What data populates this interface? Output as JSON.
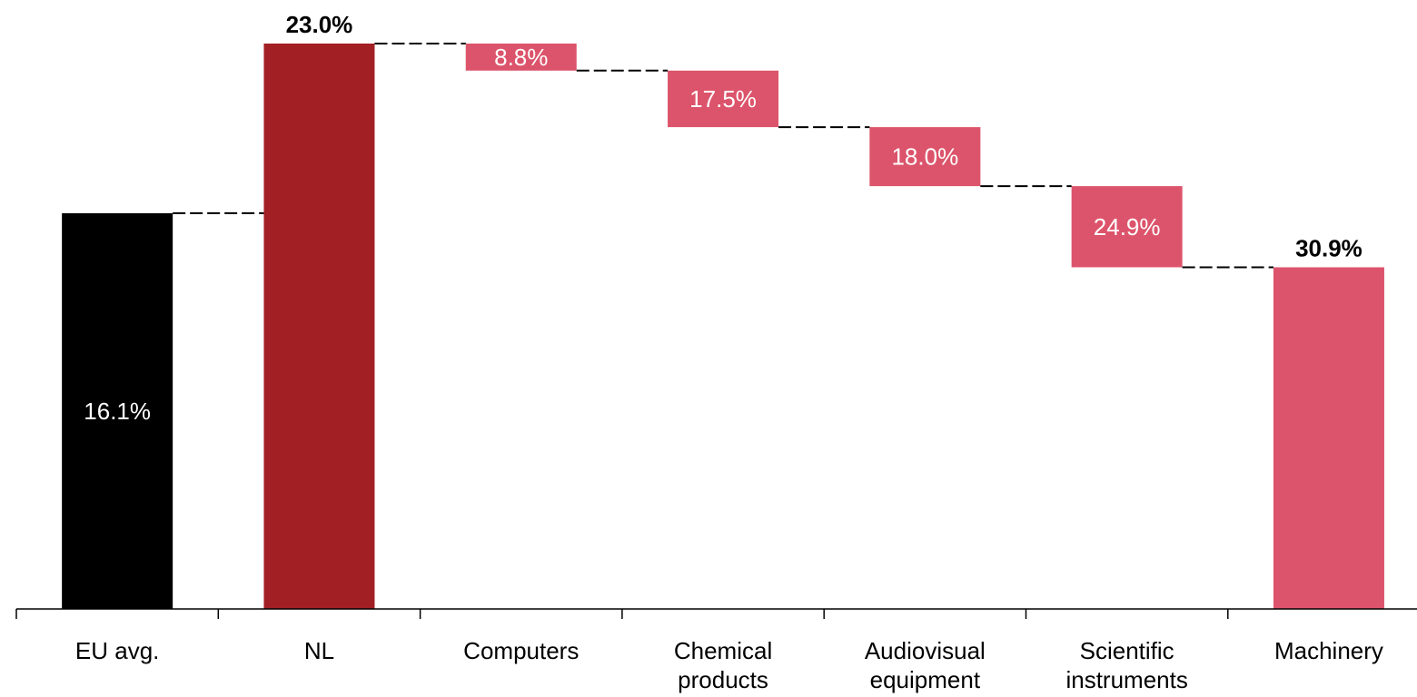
{
  "chart_data": {
    "type": "bar",
    "subtype": "waterfall",
    "categories": [
      "EU avg.",
      "NL",
      "Computers",
      "Chemical\nproducts",
      "Audiovisual\nequipment",
      "Scientific\ninstruments",
      "Machinery"
    ],
    "bars": [
      {
        "category": "EU avg.",
        "kind": "total",
        "label": "16.1%",
        "start": 0,
        "end": 16.1,
        "color": "#000000",
        "label_position": "inside"
      },
      {
        "category": "NL",
        "kind": "total",
        "label": "23.0%",
        "start": 0,
        "end": 23.0,
        "color": "#a21f24",
        "label_position": "above"
      },
      {
        "category": "Computers",
        "kind": "step",
        "label": "8.8%",
        "start": 23.0,
        "end": 21.9,
        "color": "#dc546b",
        "label_position": "inside"
      },
      {
        "category": "Chemical\nproducts",
        "kind": "step",
        "label": "17.5%",
        "start": 21.9,
        "end": 19.6,
        "color": "#dc546b",
        "label_position": "inside"
      },
      {
        "category": "Audiovisual\nequipment",
        "kind": "step",
        "label": "18.0%",
        "start": 19.6,
        "end": 17.2,
        "color": "#dc546b",
        "label_position": "inside"
      },
      {
        "category": "Scientific\ninstruments",
        "kind": "step",
        "label": "24.9%",
        "start": 17.2,
        "end": 13.9,
        "color": "#dc546b",
        "label_position": "inside"
      },
      {
        "category": "Machinery",
        "kind": "total",
        "label": "30.9%",
        "start": 0,
        "end": 13.9,
        "color": "#dc546b",
        "label_position": "above"
      }
    ],
    "ylim": [
      0,
      25
    ],
    "grid": false,
    "legend": "none",
    "connectors": "dashed"
  }
}
